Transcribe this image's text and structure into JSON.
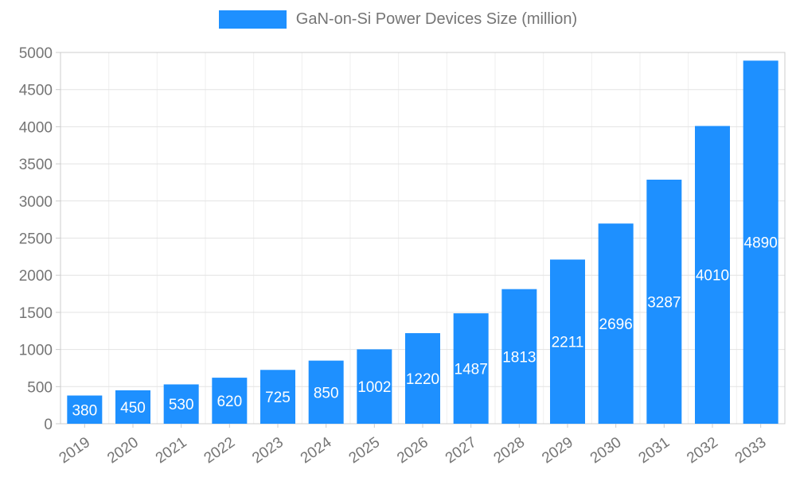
{
  "legend": {
    "label": "GaN-on-Si Power Devices Size (million)"
  },
  "chart_data": {
    "type": "bar",
    "title": "GaN-on-Si Power Devices Size (million)",
    "categories": [
      "2019",
      "2020",
      "2021",
      "2022",
      "2023",
      "2024",
      "2025",
      "2026",
      "2027",
      "2028",
      "2029",
      "2030",
      "2031",
      "2032",
      "2033"
    ],
    "values": [
      380,
      450,
      530,
      620,
      725,
      850,
      1002,
      1220,
      1487,
      1813,
      2211,
      2696,
      3287,
      4010,
      4890
    ],
    "xlabel": "",
    "ylabel": "",
    "ylim": [
      0,
      5000
    ],
    "yticks": [
      0,
      500,
      1000,
      1500,
      2000,
      2500,
      3000,
      3500,
      4000,
      4500,
      5000
    ],
    "grid": true,
    "legend_position": "top-center",
    "value_labels": "inside-center",
    "colors": {
      "bar": "#1E90FF",
      "value_label": "#ffffff",
      "axis_text": "#757575",
      "gridline": "#e3e3e3",
      "minor_gridline": "#efefef",
      "plot_border": "#cccccc",
      "background": "#ffffff"
    }
  }
}
